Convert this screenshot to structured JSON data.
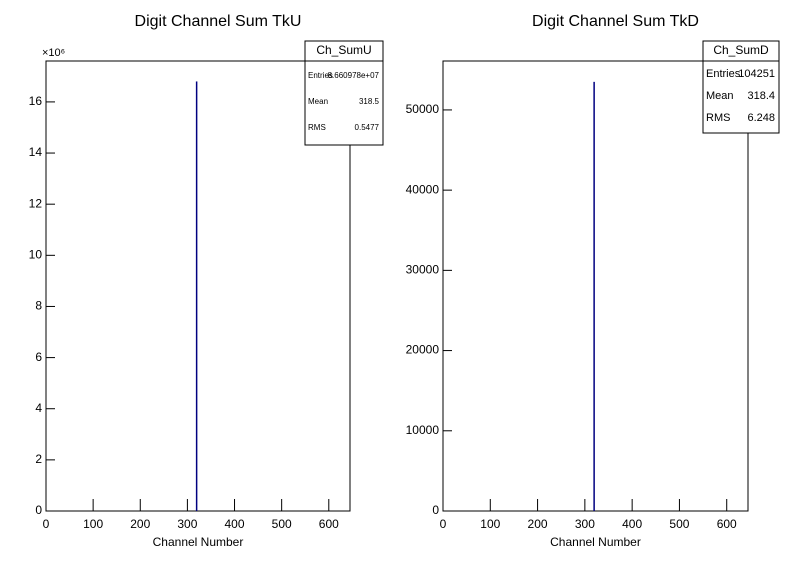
{
  "chart_data": [
    {
      "type": "histogram",
      "title": "Digit Channel Sum TkU",
      "x_label": "Channel Number",
      "y_multiplier": "×10⁶",
      "bins": [
        318,
        319
      ],
      "values": [
        16.8
      ],
      "color": "#000080",
      "xlim": [
        0,
        645
      ],
      "xticks": [
        0,
        100,
        200,
        300,
        400,
        500,
        600
      ],
      "ylim": [
        0,
        17.6
      ],
      "yticks": [
        0,
        2,
        4,
        6,
        8,
        10,
        12,
        14,
        16
      ],
      "stats": {
        "name": "Ch_SumU",
        "rows": [
          {
            "label": "Entries",
            "value": "8.660978e+07"
          },
          {
            "label": "Mean",
            "value": 318.5
          },
          {
            "label": "RMS",
            "value": 0.5477
          }
        ]
      }
    },
    {
      "type": "histogram",
      "title": "Digit Channel Sum TkD",
      "x_label": "Channel Number",
      "bins": [
        318,
        319
      ],
      "values": [
        53500
      ],
      "color": "#000080",
      "xlim": [
        0,
        645
      ],
      "xticks": [
        0,
        100,
        200,
        300,
        400,
        500,
        600
      ],
      "ylim": [
        0,
        56100
      ],
      "yticks": [
        0,
        10000,
        20000,
        30000,
        40000,
        50000
      ],
      "stats": {
        "name": "Ch_SumD",
        "rows": [
          {
            "label": "Entries",
            "value": 104251
          },
          {
            "label": "Mean",
            "value": 318.4
          },
          {
            "label": "RMS",
            "value": 6.248
          }
        ]
      }
    }
  ]
}
